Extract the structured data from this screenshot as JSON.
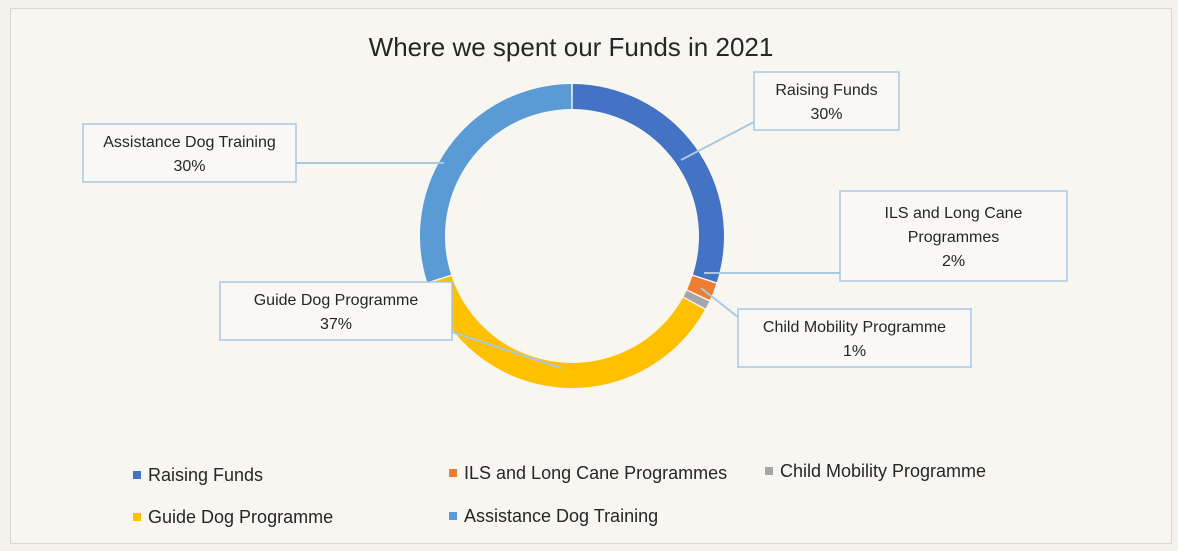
{
  "chart_data": {
    "type": "pie",
    "style": "doughnut",
    "title": "Where we spent our Funds in 2021",
    "categories": [
      "Raising Funds",
      "ILS and Long Cane Programmes",
      "Child Mobility Programme",
      "Guide Dog Programme",
      "Assistance Dog Training"
    ],
    "values": [
      30,
      2,
      1,
      37,
      30
    ],
    "labels": [
      "30%",
      "2%",
      "1%",
      "37%",
      "30%"
    ],
    "colors": [
      "#4472c4",
      "#ed7d31",
      "#a5a5a5",
      "#ffc000",
      "#5b9bd5"
    ],
    "legend": "bottom",
    "callout_lines": [
      [
        "Raising Funds"
      ],
      [
        "ILS and Long Cane",
        "Programmes"
      ],
      [
        "Child Mobility Programme"
      ],
      [
        "Guide Dog Programme"
      ],
      [
        "Assistance Dog Training"
      ]
    ]
  }
}
